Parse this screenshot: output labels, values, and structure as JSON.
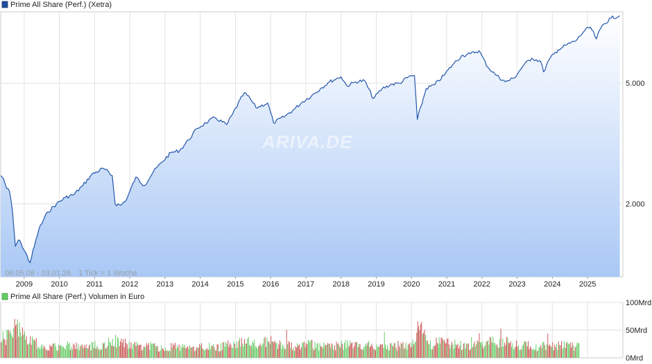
{
  "chart_data": [
    {
      "type": "line",
      "title": "Prime All Share (Perf.) (Xetra)",
      "y_scale": "log",
      "ylim": [
        1150,
        8600
      ],
      "y_ticks": [
        2000,
        5000
      ],
      "y_tick_labels": [
        "2.000",
        "5.000"
      ],
      "x_tick_labels": [
        "2009",
        "2010",
        "2011",
        "2012",
        "2013",
        "2014",
        "2015",
        "2016",
        "2017",
        "2018",
        "2019",
        "2020",
        "2021",
        "2022",
        "2023",
        "2024",
        "2025"
      ],
      "date_range_label": "06.05.08 - 03.01.26",
      "tick_note": "1 Tick = 1 Woche",
      "watermark": "ARIVA.DE",
      "grid": true,
      "series_color": "#2255aa",
      "x": [
        "2008-05",
        "2008-06",
        "2008-07",
        "2008-08",
        "2008-09",
        "2008-10",
        "2008-11",
        "2008-12",
        "2009-03",
        "2009-06",
        "2009-09",
        "2009-12",
        "2010-03",
        "2010-06",
        "2010-09",
        "2010-12",
        "2011-04",
        "2011-07",
        "2011-08",
        "2011-10",
        "2011-12",
        "2012-03",
        "2012-06",
        "2012-09",
        "2012-12",
        "2013-03",
        "2013-06",
        "2013-09",
        "2013-12",
        "2014-03",
        "2014-06",
        "2014-10",
        "2014-12",
        "2015-04",
        "2015-06",
        "2015-08",
        "2015-12",
        "2016-02",
        "2016-06",
        "2016-09",
        "2016-12",
        "2017-03",
        "2017-06",
        "2017-09",
        "2017-12",
        "2018-01",
        "2018-03",
        "2018-06",
        "2018-09",
        "2018-12",
        "2019-03",
        "2019-06",
        "2019-09",
        "2019-12",
        "2020-02",
        "2020-03",
        "2020-06",
        "2020-09",
        "2020-12",
        "2021-03",
        "2021-06",
        "2021-09",
        "2021-12",
        "2022-03",
        "2022-06",
        "2022-09",
        "2022-12",
        "2023-03",
        "2023-06",
        "2023-09",
        "2023-10",
        "2023-12",
        "2024-03",
        "2024-06",
        "2024-09",
        "2024-12",
        "2025-02",
        "2025-04",
        "2025-06",
        "2025-09",
        "2025-12"
      ],
      "values": [
        2480,
        2420,
        2250,
        2200,
        1900,
        1450,
        1520,
        1480,
        1280,
        1650,
        1880,
        2000,
        2100,
        2150,
        2300,
        2500,
        2620,
        2480,
        2000,
        1980,
        2080,
        2450,
        2300,
        2550,
        2750,
        2950,
        3000,
        3250,
        3550,
        3700,
        3850,
        3650,
        3950,
        4650,
        4450,
        4150,
        4300,
        3700,
        3900,
        4100,
        4350,
        4550,
        4800,
        5050,
        5200,
        5250,
        4900,
        5050,
        5100,
        4450,
        4800,
        4950,
        5000,
        5250,
        5300,
        3800,
        4800,
        4950,
        5300,
        5750,
        6150,
        6250,
        6400,
        5650,
        5300,
        5050,
        5200,
        5700,
        6050,
        5900,
        5450,
        6000,
        6450,
        6700,
        6900,
        7450,
        7650,
        7000,
        7750,
        8200,
        8350
      ]
    },
    {
      "type": "bar",
      "title": "Prime All Share (Perf.) Volumen in Euro",
      "unit": "Mrd",
      "ylim": [
        0,
        100
      ],
      "y_tick_labels": [
        "100Mrd",
        "50Mrd",
        "0Mrd"
      ],
      "bar_colors": [
        "#66cc66",
        "#cc5555"
      ],
      "period_labels": [
        "2008-05",
        "2008-07",
        "2008-10",
        "2009-01",
        "2009-04",
        "2009-07",
        "2009-10",
        "2010-01",
        "2010-04",
        "2010-07",
        "2010-10",
        "2011-01",
        "2011-04",
        "2011-07",
        "2011-10",
        "2012-01",
        "2012-04",
        "2012-07",
        "2012-10",
        "2013-01",
        "2013-04",
        "2013-07",
        "2013-10",
        "2014-01",
        "2014-04",
        "2014-07",
        "2014-10",
        "2015-01",
        "2015-04",
        "2015-07",
        "2015-10",
        "2016-01",
        "2016-04",
        "2016-07",
        "2016-10",
        "2017-01",
        "2017-04",
        "2017-07",
        "2017-10",
        "2018-01",
        "2018-04",
        "2018-07",
        "2018-10",
        "2019-01",
        "2019-04",
        "2019-07",
        "2019-10",
        "2020-01",
        "2020-03",
        "2020-07",
        "2020-10",
        "2021-01",
        "2021-04",
        "2021-07",
        "2021-10",
        "2022-01",
        "2022-04",
        "2022-07",
        "2022-10",
        "2023-01",
        "2023-04",
        "2023-07",
        "2023-10",
        "2024-01",
        "2024-04",
        "2024-07"
      ],
      "values": [
        35,
        42,
        60,
        38,
        30,
        24,
        20,
        22,
        25,
        22,
        20,
        24,
        22,
        36,
        30,
        24,
        22,
        24,
        20,
        18,
        22,
        20,
        19,
        20,
        22,
        20,
        24,
        23,
        34,
        26,
        30,
        33,
        25,
        23,
        22,
        27,
        24,
        22,
        22,
        25,
        28,
        22,
        27,
        22,
        22,
        21,
        22,
        26,
        62,
        26,
        29,
        28,
        25,
        23,
        24,
        30,
        32,
        28,
        30,
        25,
        26,
        20,
        25,
        24,
        26,
        22
      ]
    }
  ]
}
